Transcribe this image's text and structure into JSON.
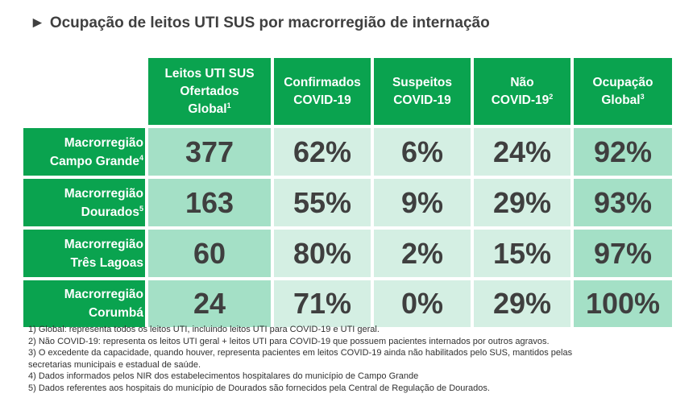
{
  "title": "Ocupação de leitos UTI SUS por macrorregião de internação",
  "title_icon": "play-triangle-icon",
  "colors": {
    "header_green": "#0aa34f",
    "cell_dark": "#a4e0c6",
    "cell_light": "#d4efe3"
  },
  "table": {
    "columns": [
      {
        "line1": "Leitos UTI SUS",
        "line2": "Ofertados",
        "line3": "Global",
        "sup": "1"
      },
      {
        "line1": "Confirmados",
        "line2": "COVID-19",
        "line3": "",
        "sup": ""
      },
      {
        "line1": "Suspeitos",
        "line2": "COVID-19",
        "line3": "",
        "sup": ""
      },
      {
        "line1": "Não",
        "line2": "COVID-19",
        "line3": "",
        "sup": "2"
      },
      {
        "line1": "Ocupação",
        "line2": "Global",
        "line3": "",
        "sup": "3"
      }
    ],
    "rows": [
      {
        "line1": "Macrorregião",
        "line2": "Campo Grande",
        "sup": "4",
        "values": [
          "377",
          "62%",
          "6%",
          "24%",
          "92%"
        ]
      },
      {
        "line1": "Macrorregião",
        "line2": "Dourados",
        "sup": "5",
        "values": [
          "163",
          "55%",
          "9%",
          "29%",
          "93%"
        ]
      },
      {
        "line1": "Macrorregião",
        "line2": "Três Lagoas",
        "sup": "",
        "values": [
          "60",
          "80%",
          "2%",
          "15%",
          "97%"
        ]
      },
      {
        "line1": "Macrorregião",
        "line2": "Corumbá",
        "sup": "",
        "values": [
          "24",
          "71%",
          "0%",
          "29%",
          "100%"
        ]
      }
    ]
  },
  "notes": [
    "1) Global: representa todos os leitos UTI, incluindo leitos UTI para COVID-19 e UTI geral.",
    "2) Não COVID-19: representa os leitos UTI geral + leitos UTI para COVID-19 que possuem pacientes internados por outros agravos.",
    "3) O excedente da capacidade, quando houver, representa pacientes em leitos COVID-19 ainda não habilitados pelo SUS, mantidos pelas",
    "secretarias municipais e estadual de saúde.",
    "4) Dados informados pelos NIR dos estabelecimentos hospitalares do município de Campo Grande",
    "5) Dados referentes aos hospitais do município de Dourados são fornecidos pela Central de Regulação de Dourados."
  ]
}
